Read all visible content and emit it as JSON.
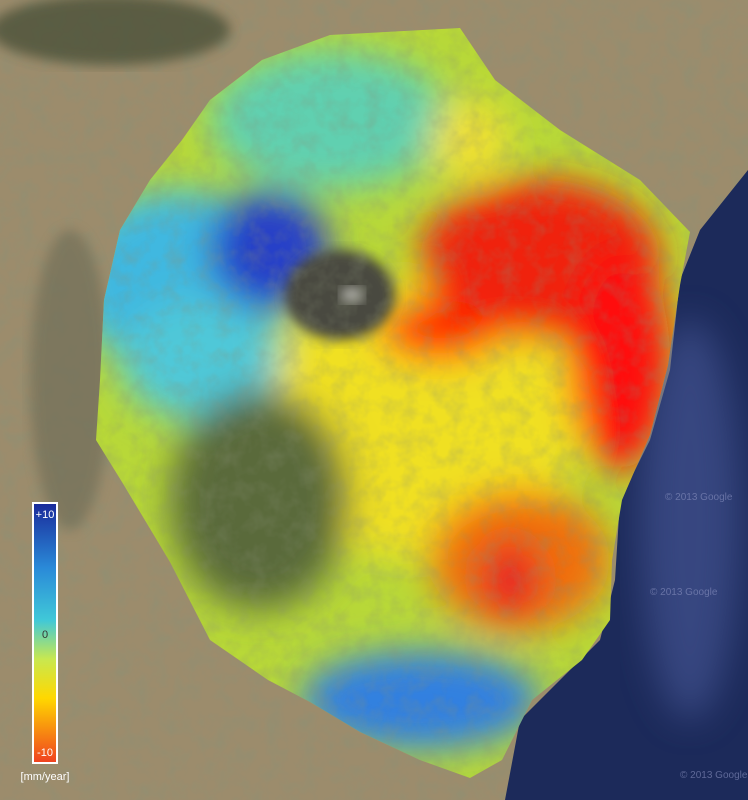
{
  "legend": {
    "max_label": "+10",
    "mid_label": "0",
    "min_label": "-10",
    "unit": "[mm/year]"
  },
  "watermarks": [
    "© 2013 Google",
    "© 2013 Google",
    "© 2013 Google"
  ]
}
